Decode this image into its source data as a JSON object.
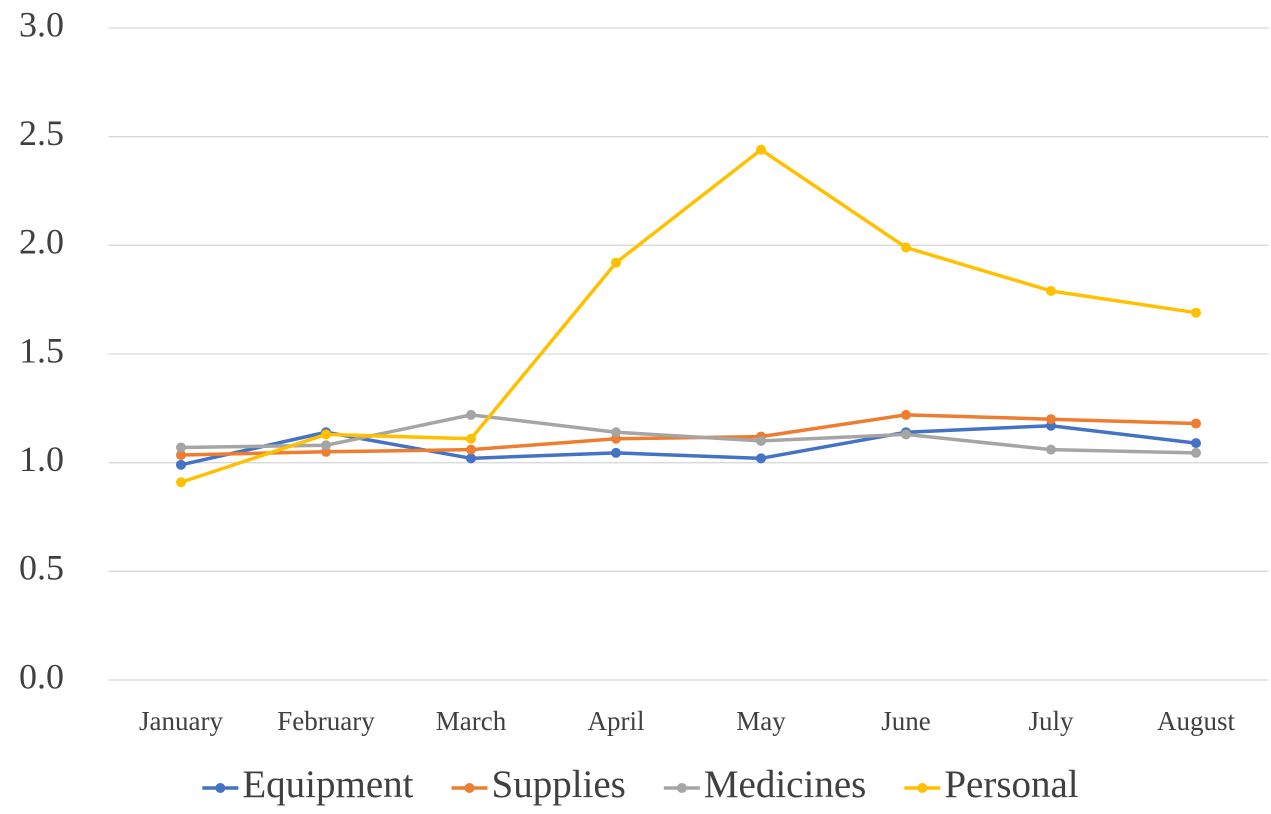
{
  "chart_data": {
    "type": "line",
    "categories": [
      "January",
      "February",
      "March",
      "April",
      "May",
      "June",
      "July",
      "August"
    ],
    "series": [
      {
        "name": "Equipment",
        "color": "#4472c4",
        "values": [
          0.99,
          1.14,
          1.02,
          1.045,
          1.02,
          1.14,
          1.17,
          1.09
        ]
      },
      {
        "name": "Supplies",
        "color": "#ed7d31",
        "values": [
          1.035,
          1.05,
          1.06,
          1.11,
          1.12,
          1.22,
          1.2,
          1.18
        ]
      },
      {
        "name": "Medicines",
        "color": "#a5a5a5",
        "values": [
          1.07,
          1.08,
          1.22,
          1.14,
          1.1,
          1.13,
          1.06,
          1.045
        ]
      },
      {
        "name": "Personal",
        "color": "#ffc000",
        "values": [
          0.91,
          1.13,
          1.11,
          1.92,
          2.44,
          1.99,
          1.79,
          1.69
        ]
      }
    ],
    "ylim": [
      0,
      3
    ],
    "yticks": [
      {
        "value": 0,
        "label": "0.0"
      },
      0.5,
      {
        "value": 1,
        "label": "1.0"
      },
      1.5,
      {
        "value": 2,
        "label": "2.0"
      },
      2.5,
      {
        "value": 3,
        "label": "3.0"
      }
    ],
    "grid": true,
    "legend": "bottom"
  }
}
